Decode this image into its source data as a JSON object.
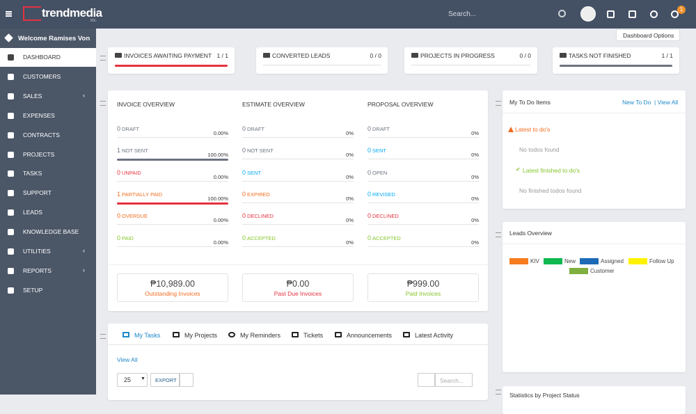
{
  "header": {
    "logo": "trendmedia",
    "logo_sub": "inc.",
    "search": "Search...",
    "badge": "1"
  },
  "sidebar": {
    "welcome": "Welcome Ramises Von",
    "items": [
      "DASHBOARD",
      "CUSTOMERS",
      "SALES",
      "EXPENSES",
      "CONTRACTS",
      "PROJECTS",
      "TASKS",
      "SUPPORT",
      "LEADS",
      "KNOWLEDGE BASE",
      "UTILITIES",
      "REPORTS",
      "SETUP"
    ]
  },
  "dashboard_options": "Dashboard Options",
  "stats": [
    {
      "label": "INVOICES AWAITING PAYMENT",
      "value": "1 / 1",
      "bar": "#e5323e"
    },
    {
      "label": "CONVERTED LEADS",
      "value": "0 / 0"
    },
    {
      "label": "PROJECTS IN PROGRESS",
      "value": "0 / 0"
    },
    {
      "label": "TASKS NOT FINISHED",
      "value": "1 / 1",
      "bar": "#6b7280"
    }
  ],
  "overview": [
    {
      "title": "INVOICE OVERVIEW",
      "rows": [
        {
          "count": "0",
          "label": "DRAFT",
          "pct": "0.00%",
          "color": "#6b7280"
        },
        {
          "count": "1",
          "label": "NOT SENT",
          "pct": "100.00%",
          "color": "#6b7280",
          "bar": "#6b7280"
        },
        {
          "count": "0",
          "label": "UNPAID",
          "pct": "0.00%",
          "color": "#e5323e"
        },
        {
          "count": "1",
          "label": "PARTIALLY PAID",
          "pct": "100.00%",
          "color": "#f36c21",
          "bar": "#e5323e"
        },
        {
          "count": "0",
          "label": "OVERDUE",
          "pct": "0.00%",
          "color": "#f36c21"
        },
        {
          "count": "0",
          "label": "PAID",
          "pct": "0.00%",
          "color": "#84c529"
        }
      ]
    },
    {
      "title": "ESTIMATE OVERVIEW",
      "rows": [
        {
          "count": "0",
          "label": "DRAFT",
          "pct": "0%",
          "color": "#6b7280"
        },
        {
          "count": "0",
          "label": "NOT SENT",
          "pct": "0%",
          "color": "#6b7280"
        },
        {
          "count": "0",
          "label": "SENT",
          "pct": "0%",
          "color": "#03a9f4"
        },
        {
          "count": "0",
          "label": "EXPIRED",
          "pct": "0%",
          "color": "#f36c21"
        },
        {
          "count": "0",
          "label": "DECLINED",
          "pct": "0%",
          "color": "#e5323e"
        },
        {
          "count": "0",
          "label": "ACCEPTED",
          "pct": "0%",
          "color": "#84c529"
        }
      ]
    },
    {
      "title": "PROPOSAL OVERVIEW",
      "rows": [
        {
          "count": "0",
          "label": "DRAFT",
          "pct": "0%",
          "color": "#6b7280"
        },
        {
          "count": "0",
          "label": "SENT",
          "pct": "0%",
          "color": "#03a9f4"
        },
        {
          "count": "0",
          "label": "OPEN",
          "pct": "0%",
          "color": "#6b7280"
        },
        {
          "count": "0",
          "label": "REVISED",
          "pct": "0%",
          "color": "#03a9f4"
        },
        {
          "count": "0",
          "label": "DECLINED",
          "pct": "0%",
          "color": "#e5323e"
        },
        {
          "count": "0",
          "label": "ACCEPTED",
          "pct": "0%",
          "color": "#84c529"
        }
      ]
    }
  ],
  "totals": [
    {
      "amount": "₱10,989.00",
      "label": "Outstanding Invoices",
      "color": "#f36c21"
    },
    {
      "amount": "₱0.00",
      "label": "Past Due Invoices",
      "color": "#e5323e"
    },
    {
      "amount": "₱999.00",
      "label": "Paid Invoices",
      "color": "#84c529"
    }
  ],
  "todo": {
    "title": "My To Do Items",
    "new": "New To Do",
    "view_all": "| View All",
    "latest": "Latest to do's",
    "latest_empty": "No todos found",
    "finished": "Latest finished to do's",
    "finished_empty": "No finished todos found"
  },
  "leads": {
    "title": "Leads Overview",
    "legend": [
      {
        "name": "KIV",
        "color": "#f57c1f"
      },
      {
        "name": "New",
        "color": "#10b850"
      },
      {
        "name": "Assigned",
        "color": "#1d6bb6"
      },
      {
        "name": "Follow Up",
        "color": "#fff200"
      },
      {
        "name": "Customer",
        "color": "#7fb03f"
      }
    ]
  },
  "tabs": {
    "items": [
      "My Tasks",
      "My Projects",
      "My Reminders",
      "Tickets",
      "Announcements",
      "Latest Activity"
    ],
    "view_all": "View All",
    "page_size": "25",
    "export": "EXPORT",
    "search": "Search..."
  },
  "stats_panel": {
    "title": "Statistics by Project Status"
  }
}
